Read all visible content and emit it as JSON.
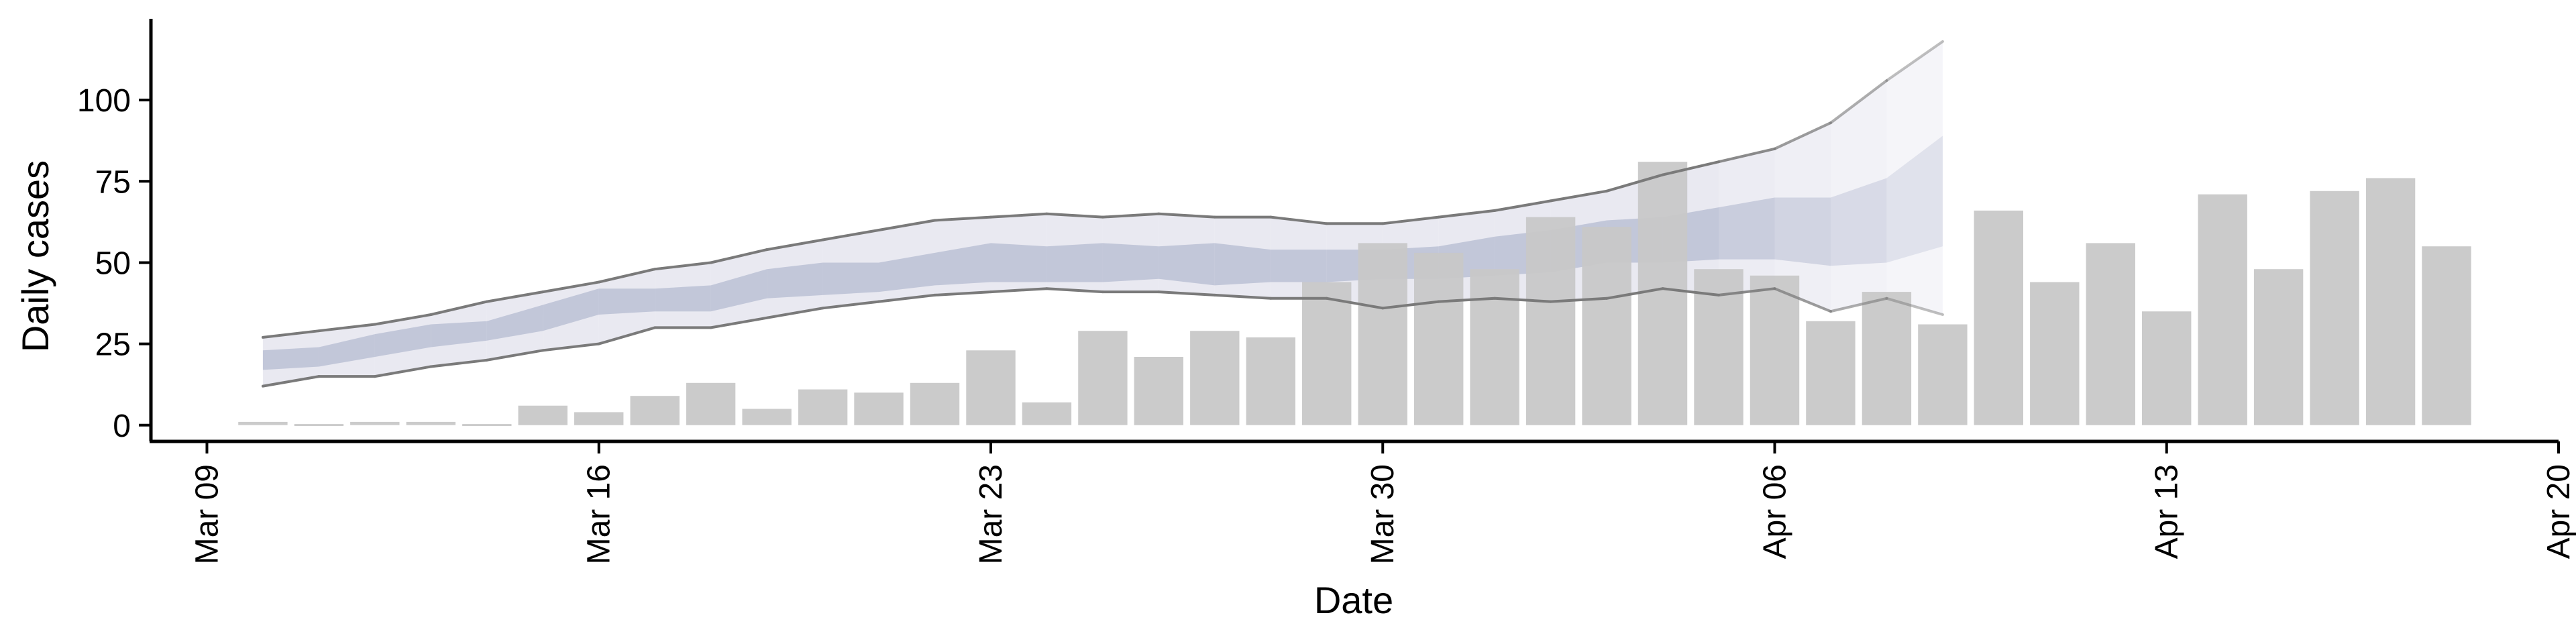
{
  "chart_data": {
    "type": "bar",
    "xlabel": "Date",
    "ylabel": "Daily cases",
    "xlim": [
      "2020-03-08",
      "2020-04-20"
    ],
    "ylim": [
      -5,
      125
    ],
    "x_ticks": [
      {
        "date": "2020-03-09",
        "label": "Mar 09"
      },
      {
        "date": "2020-03-16",
        "label": "Mar 16"
      },
      {
        "date": "2020-03-23",
        "label": "Mar 23"
      },
      {
        "date": "2020-03-30",
        "label": "Mar 30"
      },
      {
        "date": "2020-04-06",
        "label": "Apr 06"
      },
      {
        "date": "2020-04-13",
        "label": "Apr 13"
      },
      {
        "date": "2020-04-20",
        "label": "Apr 20"
      }
    ],
    "y_ticks": [
      0,
      25,
      50,
      75,
      100
    ],
    "grid": false,
    "bars": {
      "color": "#c8c8c8",
      "x": [
        "2020-03-10",
        "2020-03-11",
        "2020-03-12",
        "2020-03-13",
        "2020-03-14",
        "2020-03-15",
        "2020-03-16",
        "2020-03-17",
        "2020-03-18",
        "2020-03-19",
        "2020-03-20",
        "2020-03-21",
        "2020-03-22",
        "2020-03-23",
        "2020-03-24",
        "2020-03-25",
        "2020-03-26",
        "2020-03-27",
        "2020-03-28",
        "2020-03-29",
        "2020-03-30",
        "2020-03-31",
        "2020-04-01",
        "2020-04-02",
        "2020-04-03",
        "2020-04-04",
        "2020-04-05",
        "2020-04-06",
        "2020-04-07",
        "2020-04-08",
        "2020-04-09",
        "2020-04-10",
        "2020-04-11",
        "2020-04-12",
        "2020-04-13",
        "2020-04-14",
        "2020-04-15",
        "2020-04-16",
        "2020-04-17",
        "2020-04-18"
      ],
      "values": [
        1,
        0,
        1,
        1,
        0,
        6,
        4,
        9,
        13,
        5,
        11,
        10,
        13,
        23,
        7,
        29,
        21,
        29,
        27,
        44,
        56,
        53,
        48,
        64,
        61,
        81,
        48,
        46,
        32,
        41,
        31,
        66,
        44,
        56,
        35,
        71,
        48,
        72,
        76,
        55
      ]
    },
    "estimate": {
      "x": [
        "2020-03-10",
        "2020-03-11",
        "2020-03-12",
        "2020-03-13",
        "2020-03-14",
        "2020-03-15",
        "2020-03-16",
        "2020-03-17",
        "2020-03-18",
        "2020-03-19",
        "2020-03-20",
        "2020-03-21",
        "2020-03-22",
        "2020-03-23",
        "2020-03-24",
        "2020-03-25",
        "2020-03-26",
        "2020-03-27",
        "2020-03-28",
        "2020-03-29",
        "2020-03-30",
        "2020-03-31",
        "2020-04-01",
        "2020-04-02",
        "2020-04-03",
        "2020-04-04",
        "2020-04-05",
        "2020-04-06",
        "2020-04-07",
        "2020-04-08",
        "2020-04-09"
      ],
      "outer_lower": [
        12,
        15,
        15,
        18,
        20,
        23,
        25,
        30,
        30,
        33,
        36,
        38,
        40,
        41,
        42,
        41,
        41,
        40,
        39,
        39,
        36,
        38,
        39,
        38,
        39,
        42,
        40,
        42,
        35,
        39,
        34
      ],
      "outer_upper": [
        27,
        29,
        31,
        34,
        38,
        41,
        44,
        48,
        50,
        54,
        57,
        60,
        63,
        64,
        65,
        64,
        65,
        64,
        64,
        62,
        62,
        64,
        66,
        69,
        72,
        77,
        81,
        85,
        93,
        106,
        118
      ],
      "inner_lower": [
        17,
        18,
        21,
        24,
        26,
        29,
        34,
        35,
        35,
        39,
        40,
        41,
        43,
        44,
        44,
        44,
        45,
        43,
        44,
        44,
        45,
        45,
        46,
        47,
        50,
        50,
        51,
        51,
        49,
        50,
        55
      ],
      "inner_upper": [
        23,
        24,
        28,
        31,
        32,
        37,
        42,
        42,
        43,
        48,
        50,
        50,
        53,
        56,
        55,
        56,
        55,
        56,
        54,
        54,
        54,
        55,
        58,
        60,
        63,
        64,
        67,
        70,
        70,
        76,
        89
      ],
      "outer_color": "#e1e2ec",
      "inner_color": "#a9b0c9",
      "line_color": "#7a7a7a",
      "forecast_start": "2020-04-04"
    }
  }
}
